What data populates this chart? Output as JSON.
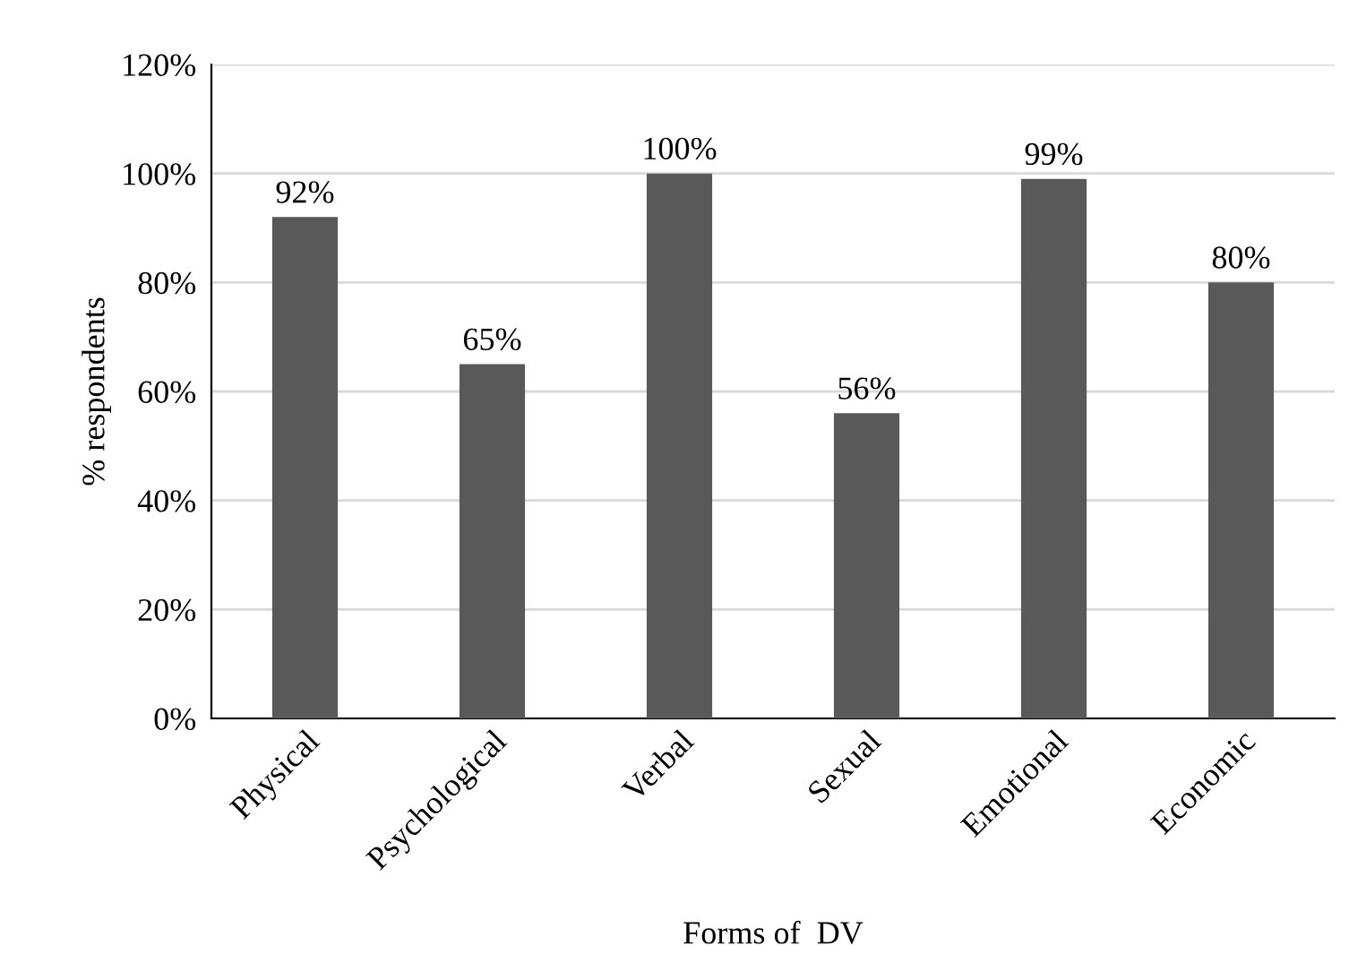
{
  "chart_data": {
    "type": "bar",
    "categories": [
      "Physical",
      "Psychological",
      "Verbal",
      "Sexual",
      "Emotional",
      "Economic"
    ],
    "values": [
      92,
      65,
      100,
      56,
      99,
      80
    ],
    "value_labels": [
      "92%",
      "65%",
      "100%",
      "56%",
      "99%",
      "80%"
    ],
    "color": "#595959",
    "xlabel": "Forms of  DV",
    "ylabel": "% respondents",
    "ylim": [
      0,
      120
    ],
    "yticks": [
      {
        "value": 0,
        "label": "0%"
      },
      {
        "value": 20,
        "label": "20%"
      },
      {
        "value": 40,
        "label": "40%"
      },
      {
        "value": 60,
        "label": "60%"
      },
      {
        "value": 80,
        "label": "80%"
      },
      {
        "value": 100,
        "label": "100%"
      },
      {
        "value": 120,
        "label": "120%"
      }
    ],
    "grid": "y",
    "legend": false
  }
}
